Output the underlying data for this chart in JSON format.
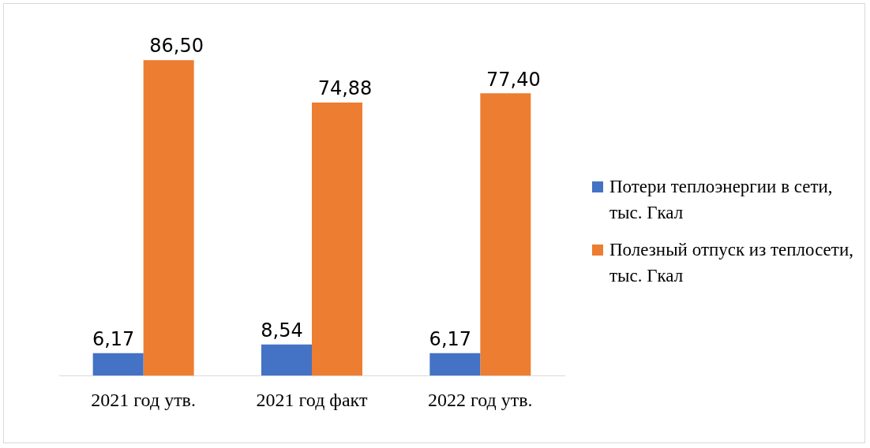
{
  "chart_data": {
    "type": "bar",
    "categories": [
      "2021 год утв.",
      "2021 год факт",
      "2022 год утв."
    ],
    "series": [
      {
        "name": "Потери теплоэнергии в сети, тыс. Гкал",
        "color": "#4472c4",
        "values": [
          6.17,
          8.54,
          6.17
        ],
        "value_labels": [
          "6,17",
          "8,54",
          "6,17"
        ]
      },
      {
        "name": "Полезный отпуск из теплосети, тыс. Гкал",
        "color": "#ed7d31",
        "values": [
          86.5,
          74.88,
          77.4
        ],
        "value_labels": [
          "86,50",
          "74,88",
          "77,40"
        ]
      }
    ],
    "legend": "right",
    "grid": false
  }
}
